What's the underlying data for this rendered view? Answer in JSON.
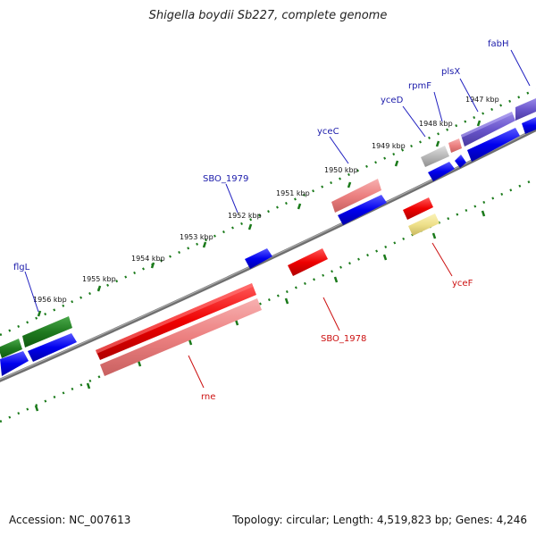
{
  "title": "Shigella boydii Sb227, complete genome",
  "footer": {
    "accession": "Accession: NC_007613",
    "topology": "Topology: circular; Length: 4,519,823 bp; Genes: 4,246"
  },
  "colors": {
    "backbone": "#808080",
    "ticks": "#1a7a1a",
    "label_blue": "#1a1aaa",
    "label_red": "#cc1010"
  },
  "kbp_labels": [
    "1947 kbp",
    "1948 kbp",
    "1949 kbp",
    "1950 kbp",
    "1951 kbp",
    "1952 kbp",
    "1953 kbp",
    "1954 kbp",
    "1955 kbp",
    "1956 kbp"
  ],
  "gene_labels": {
    "fabH": "fabH",
    "plsX": "plsX",
    "rpmF": "rpmF",
    "yceD": "yceD",
    "yceC": "yceC",
    "SBO_1979": "SBO_1979",
    "flgL": "flgL",
    "yceF": "yceF",
    "SBO_1978": "SBO_1978",
    "rne": "rne"
  }
}
